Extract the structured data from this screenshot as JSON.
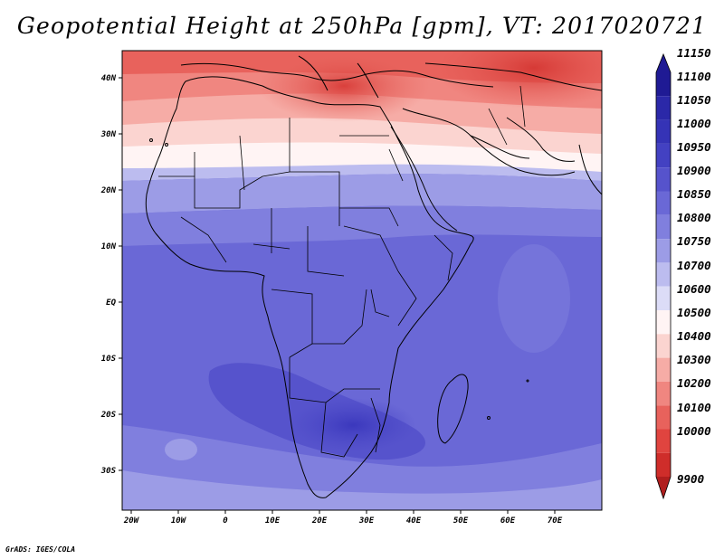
{
  "title": "Geopotential Height at 250hPa [gpm], VT: 2017020721",
  "footer": "GrADS: IGES/COLA",
  "map": {
    "region": "Africa",
    "lon_labels": [
      "20W",
      "10W",
      "0",
      "10E",
      "20E",
      "30E",
      "40E",
      "50E",
      "60E",
      "70E"
    ],
    "lat_labels": [
      "40N",
      "30N",
      "20N",
      "10N",
      "EQ",
      "10S",
      "20S",
      "30S"
    ],
    "field": "geopotential height",
    "level": "250hPa",
    "units": "gpm"
  },
  "colorbar": {
    "labels": [
      "11150",
      "11100",
      "11050",
      "11000",
      "10950",
      "10900",
      "10850",
      "10800",
      "10750",
      "10700",
      "10600",
      "10500",
      "10400",
      "10300",
      "10200",
      "10100",
      "10000",
      "9900"
    ],
    "colors": [
      "#1f1a94",
      "#2b28a8",
      "#3533b6",
      "#4341c2",
      "#5653cc",
      "#6a68d6",
      "#807fde",
      "#9c9ce6",
      "#bcbcef",
      "#dcdcf7",
      "#fff4f4",
      "#fbd4d0",
      "#f6aca6",
      "#f08680",
      "#e8625c",
      "#e0443f",
      "#cf2d2a",
      "#b01e1e"
    ]
  }
}
